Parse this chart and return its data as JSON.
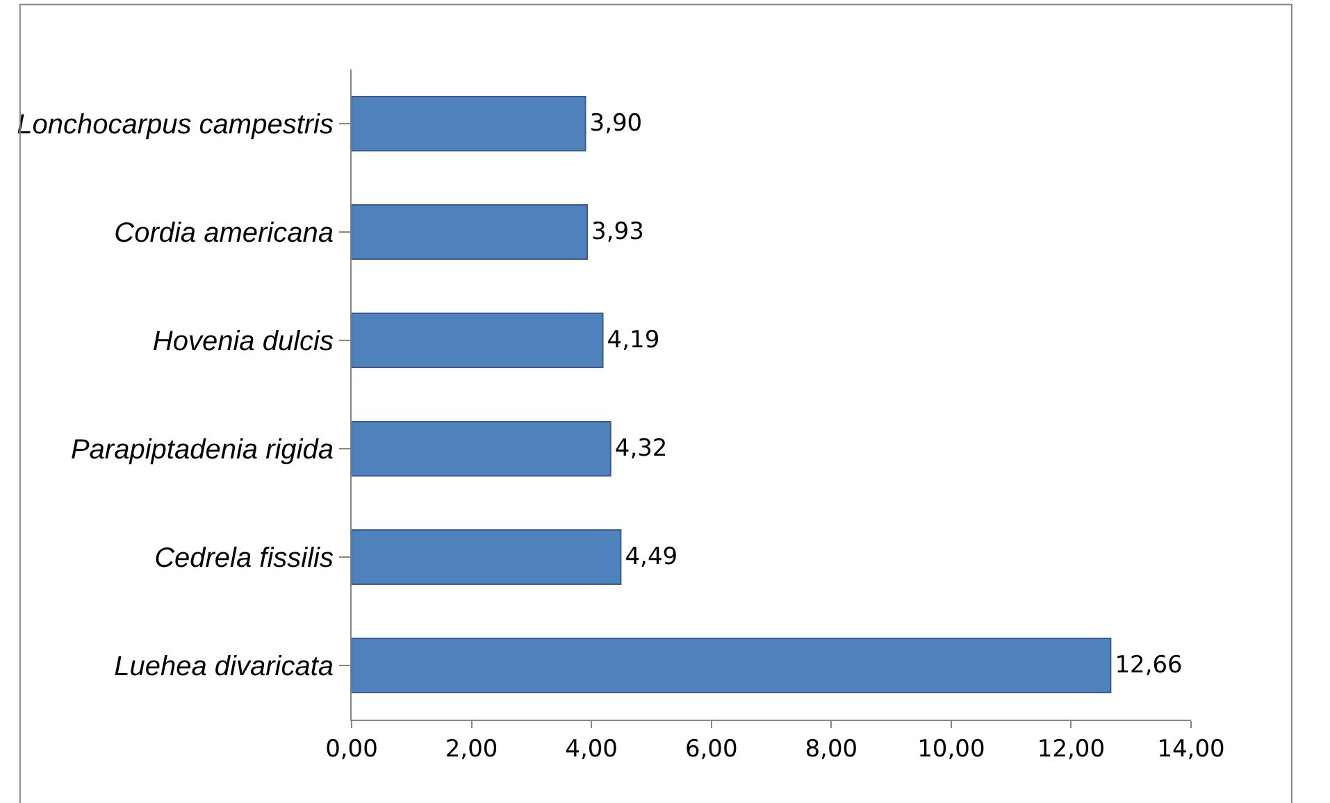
{
  "chart_data": {
    "type": "bar",
    "orientation": "horizontal",
    "categories": [
      "Lonchocarpus campestris",
      "Cordia americana",
      "Hovenia dulcis",
      "Parapiptadenia rigida",
      "Cedrela fissilis",
      "Luehea divaricata"
    ],
    "values": [
      3.9,
      3.93,
      4.19,
      4.32,
      4.49,
      12.66
    ],
    "value_labels": [
      "3,90",
      "3,93",
      "4,19",
      "4,32",
      "4,49",
      "12,66"
    ],
    "color": "#4f81bd",
    "xlim": [
      0,
      14
    ],
    "xticks": [
      {
        "value": 0,
        "label": "0,00"
      },
      {
        "value": 2,
        "label": "2,00"
      },
      {
        "value": 4,
        "label": "4,00"
      },
      {
        "value": 6,
        "label": "6,00"
      },
      {
        "value": 8,
        "label": "8,00"
      },
      {
        "value": 10,
        "label": "10,00"
      },
      {
        "value": 12,
        "label": "12,00"
      },
      {
        "value": 14,
        "label": "14,00"
      }
    ],
    "grid": false,
    "legend": false
  }
}
